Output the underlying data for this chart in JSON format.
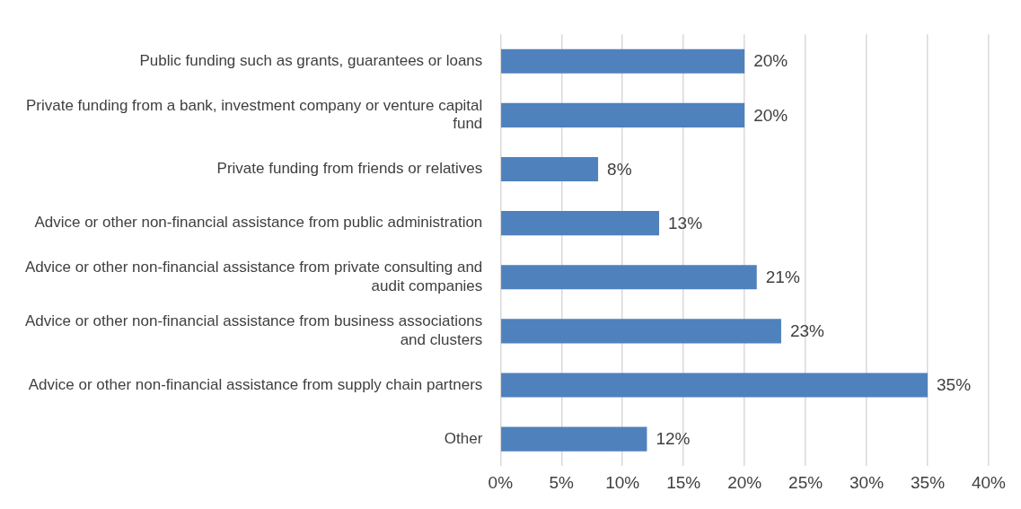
{
  "chart_data": {
    "type": "bar",
    "orientation": "horizontal",
    "categories": [
      "Public funding such as grants, guarantees or loans",
      "Private funding from a bank, investment company or venture capital fund",
      "Private funding from friends or relatives",
      "Advice or other non-financial assistance from public administration",
      "Advice or other non-financial assistance from private consulting and audit companies",
      "Advice or other non-financial assistance from business associations and clusters",
      "Advice or other non-financial assistance from supply chain partners",
      "Other"
    ],
    "values": [
      20,
      20,
      8,
      13,
      21,
      23,
      35,
      12
    ],
    "value_labels": [
      "20%",
      "20%",
      "8%",
      "13%",
      "21%",
      "23%",
      "35%",
      "12%"
    ],
    "color": "#4f81bd",
    "xlim": [
      0,
      40
    ],
    "xticks": [
      {
        "value": 0,
        "label": "0%"
      },
      {
        "value": 5,
        "label": "5%"
      },
      {
        "value": 10,
        "label": "10%"
      },
      {
        "value": 15,
        "label": "15%"
      },
      {
        "value": 20,
        "label": "20%"
      },
      {
        "value": 25,
        "label": "25%"
      },
      {
        "value": 30,
        "label": "30%"
      },
      {
        "value": 35,
        "label": "35%"
      },
      {
        "value": 40,
        "label": "40%"
      }
    ],
    "grid": "x",
    "legend": false
  }
}
